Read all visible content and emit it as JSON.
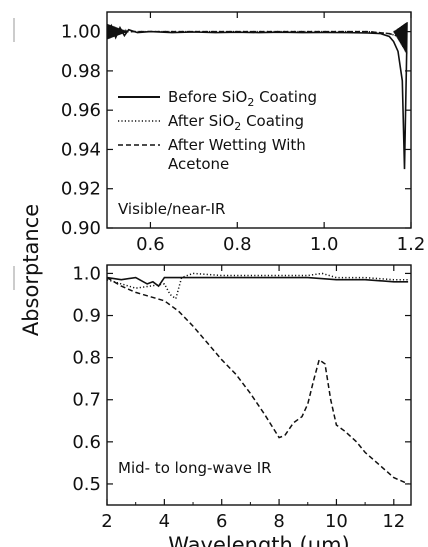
{
  "shared_ylabel": "Absorptance",
  "chart_data": [
    {
      "type": "line",
      "panel": "top",
      "annotation": "Visible/near-IR",
      "xlabel": "",
      "ylabel": "",
      "xlim": [
        0.5,
        1.2
      ],
      "ylim": [
        0.9,
        1.01
      ],
      "xticks": [
        0.6,
        0.8,
        1.0,
        1.2
      ],
      "xtick_labels": [
        "0.6",
        "0.8",
        "1.0",
        "1.2"
      ],
      "yticks": [
        0.9,
        0.92,
        0.94,
        0.96,
        0.98,
        1.0
      ],
      "ytick_labels": [
        "0.90",
        "0.92",
        "0.94",
        "0.96",
        "0.98",
        "1.00"
      ],
      "legend": {
        "placement": "center-left",
        "entries": [
          {
            "label_pre": "Before SiO",
            "sub": "2",
            "label_post": " Coating",
            "style": "solid"
          },
          {
            "label_pre": "After SiO",
            "sub": "2",
            "label_post": " Coating",
            "style": "dotted"
          },
          {
            "label_line1": "After Wetting With",
            "label_line2": "Acetone",
            "style": "dashed"
          }
        ]
      },
      "series": [
        {
          "style": "solid",
          "x": [
            0.5,
            0.51,
            0.52,
            0.53,
            0.54,
            0.55,
            0.57,
            0.6,
            0.65,
            0.7,
            0.75,
            0.8,
            0.85,
            0.9,
            0.95,
            1.0,
            1.05,
            1.1,
            1.13,
            1.15,
            1.16,
            1.17,
            1.18,
            1.185,
            1.19
          ],
          "y": [
            0.999,
            1.003,
            0.997,
            1.002,
            0.998,
            1.001,
            0.9995,
            1.0,
            0.9995,
            0.9998,
            0.9995,
            0.9997,
            0.9995,
            0.9997,
            0.9995,
            0.9996,
            0.9995,
            0.9993,
            0.999,
            0.9975,
            0.995,
            0.99,
            0.975,
            0.93,
            0.99
          ]
        },
        {
          "style": "dotted",
          "x": [
            0.5,
            0.55,
            0.6,
            0.7,
            0.8,
            0.9,
            1.0,
            1.1,
            1.15,
            1.18,
            1.19
          ],
          "y": [
            1.0,
            1.0,
            1.0,
            1.0,
            1.0,
            1.0,
            1.0,
            1.0,
            0.999,
            0.997,
            0.999
          ]
        },
        {
          "style": "dashed",
          "x": [
            0.5,
            0.55,
            0.6,
            0.7,
            0.8,
            0.9,
            1.0,
            1.1,
            1.15,
            1.18,
            1.19
          ],
          "y": [
            1.0,
            1.0,
            1.0,
            1.0,
            1.0,
            1.0,
            1.0,
            1.0,
            0.999,
            0.997,
            0.999
          ]
        }
      ]
    },
    {
      "type": "line",
      "panel": "bottom",
      "annotation": "Mid- to long-wave IR",
      "xlabel": "Wavelength (μm)",
      "ylabel": "",
      "xlim": [
        2,
        12.6
      ],
      "ylim": [
        0.45,
        1.02
      ],
      "xticks": [
        2,
        4,
        6,
        8,
        10,
        12
      ],
      "xtick_labels": [
        "2",
        "4",
        "6",
        "8",
        "10",
        "12"
      ],
      "yticks": [
        0.5,
        0.6,
        0.7,
        0.8,
        0.9,
        1.0
      ],
      "ytick_labels": [
        "0.5",
        "0.6",
        "0.7",
        "0.8",
        "0.9",
        "1.0"
      ],
      "series": [
        {
          "style": "solid",
          "x": [
            2.0,
            2.5,
            3.0,
            3.4,
            3.6,
            3.8,
            4.0,
            4.5,
            5.0,
            6.0,
            7.0,
            8.0,
            9.0,
            10.0,
            11.0,
            12.0,
            12.5
          ],
          "y": [
            0.99,
            0.985,
            0.99,
            0.975,
            0.98,
            0.97,
            0.99,
            0.99,
            0.99,
            0.99,
            0.99,
            0.99,
            0.99,
            0.985,
            0.985,
            0.98,
            0.98
          ]
        },
        {
          "style": "dotted",
          "x": [
            2.0,
            2.5,
            3.0,
            3.5,
            4.0,
            4.2,
            4.4,
            4.6,
            5.0,
            6.0,
            7.0,
            8.0,
            9.0,
            9.5,
            10.0,
            11.0,
            12.0,
            12.5
          ],
          "y": [
            0.985,
            0.975,
            0.965,
            0.97,
            0.975,
            0.95,
            0.94,
            0.99,
            1.0,
            0.995,
            0.995,
            0.995,
            0.995,
            1.0,
            0.99,
            0.99,
            0.985,
            0.985
          ]
        },
        {
          "style": "dashed",
          "x": [
            2.0,
            2.5,
            3.0,
            3.5,
            4.0,
            4.5,
            5.0,
            5.5,
            6.0,
            6.5,
            7.0,
            7.5,
            8.0,
            8.2,
            8.5,
            8.8,
            9.0,
            9.2,
            9.4,
            9.6,
            9.8,
            10.0,
            10.3,
            10.7,
            11.0,
            11.5,
            12.0,
            12.5
          ],
          "y": [
            0.99,
            0.97,
            0.955,
            0.945,
            0.935,
            0.91,
            0.875,
            0.835,
            0.795,
            0.76,
            0.715,
            0.665,
            0.61,
            0.615,
            0.645,
            0.66,
            0.69,
            0.745,
            0.795,
            0.785,
            0.7,
            0.64,
            0.625,
            0.6,
            0.575,
            0.545,
            0.515,
            0.5
          ]
        }
      ]
    }
  ]
}
